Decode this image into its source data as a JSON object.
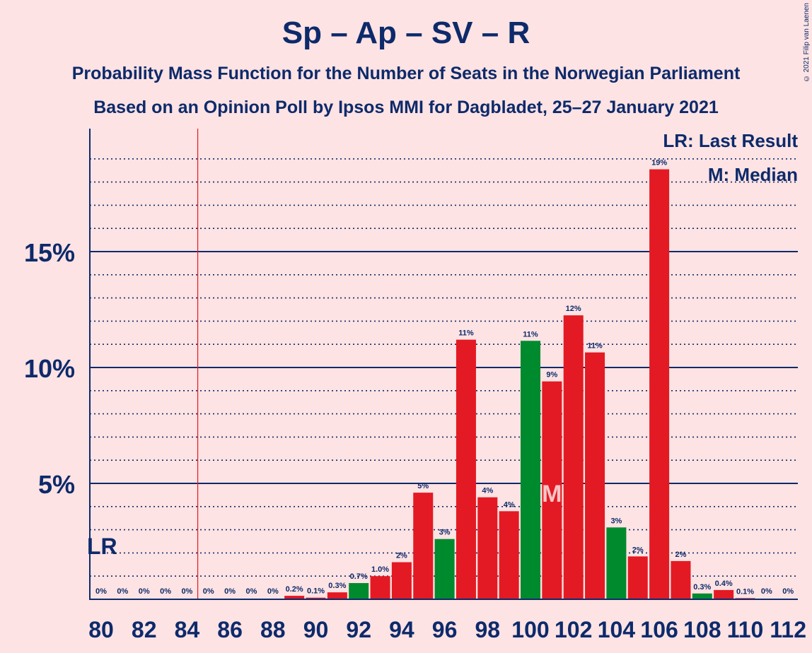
{
  "title": "Sp – Ap – SV – R",
  "subtitle1": "Probability Mass Function for the Number of Seats in the Norwegian Parliament",
  "subtitle2": "Based on an Opinion Poll by Ipsos MMI for Dagbladet, 25–27 January 2021",
  "copyright": "© 2021 Filip van Laenen",
  "legend": {
    "last_result": "LR: Last Result",
    "median": "M: Median"
  },
  "colors": {
    "background": "#fde3e3",
    "axis": "#0d2a6b",
    "red": "#e31a23",
    "green": "#008a2e",
    "lr_line": "#e31a23"
  },
  "chart_data": {
    "type": "bar",
    "x": [
      80,
      81,
      82,
      83,
      84,
      85,
      86,
      87,
      88,
      89,
      90,
      91,
      92,
      93,
      94,
      95,
      96,
      97,
      98,
      99,
      100,
      101,
      102,
      103,
      104,
      105,
      106,
      107,
      108,
      109,
      110,
      111,
      112
    ],
    "values": [
      0,
      0,
      0,
      0,
      0,
      0,
      0,
      0,
      0,
      0.15,
      0.07,
      0.3,
      0.7,
      1.0,
      1.6,
      4.6,
      2.6,
      11.2,
      4.4,
      3.8,
      11.15,
      9.4,
      12.25,
      10.65,
      3.1,
      1.85,
      18.55,
      1.65,
      0.25,
      0.4,
      0.05,
      0,
      0
    ],
    "labels": [
      "0%",
      "0%",
      "0%",
      "0%",
      "0%",
      "0%",
      "0%",
      "0%",
      "0%",
      "0.2%",
      "0.1%",
      "0.3%",
      "0.7%",
      "1.0%",
      "2%",
      "5%",
      "3%",
      "11%",
      "4%",
      "4%",
      "11%",
      "9%",
      "12%",
      "11%",
      "3%",
      "2%",
      "19%",
      "2%",
      "0.3%",
      "0.4%",
      "0.1%",
      "0%",
      "0%"
    ],
    "bar_colors": [
      "red",
      "red",
      "red",
      "red",
      "red",
      "red",
      "red",
      "red",
      "red",
      "red",
      "red",
      "red",
      "green",
      "red",
      "red",
      "red",
      "green",
      "red",
      "red",
      "red",
      "green",
      "red",
      "red",
      "red",
      "green",
      "red",
      "red",
      "red",
      "green",
      "red",
      "red",
      "red",
      "red"
    ],
    "x_tick_labels": [
      "80",
      "82",
      "84",
      "86",
      "88",
      "90",
      "92",
      "94",
      "96",
      "98",
      "100",
      "102",
      "104",
      "106",
      "108",
      "110",
      "112"
    ],
    "y_tick_labels": [
      "5%",
      "10%",
      "15%"
    ],
    "y_ticks": [
      5,
      10,
      15
    ],
    "ylim": [
      0,
      20.3
    ],
    "grid": true,
    "last_result_seat": 85,
    "last_result_label": "LR",
    "median_seat": 101,
    "median_label": "M"
  }
}
